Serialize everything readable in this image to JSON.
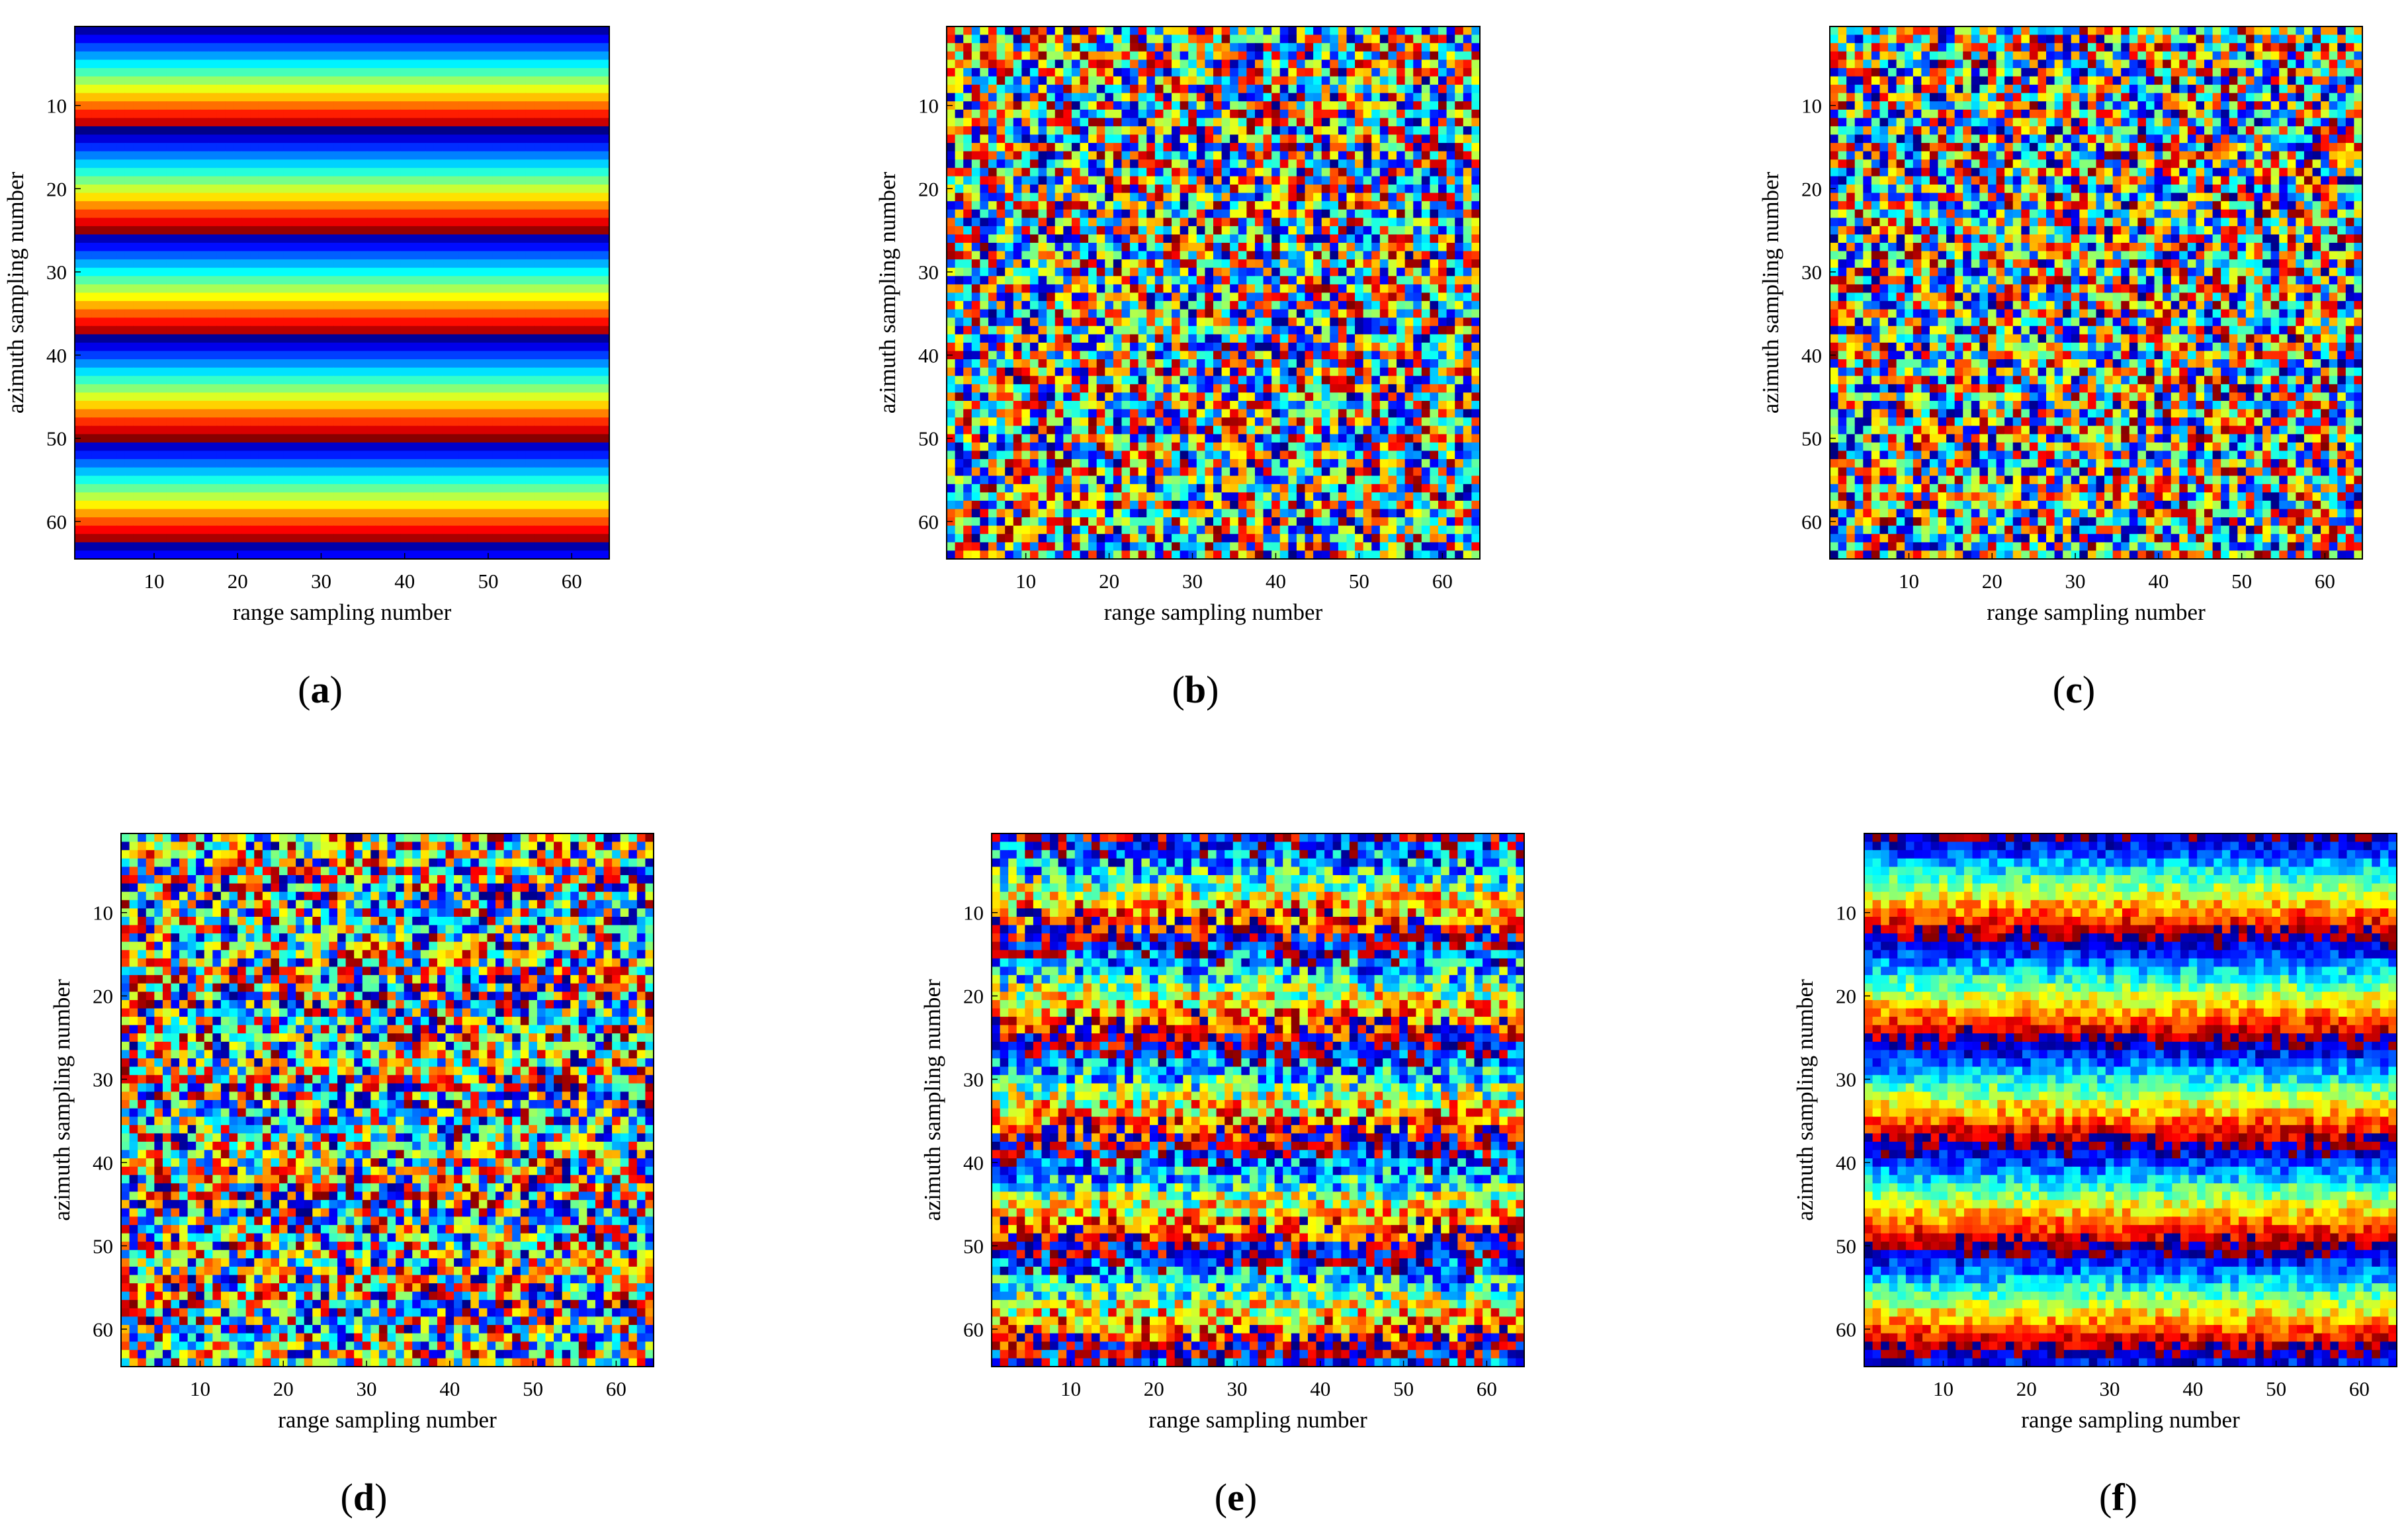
{
  "figure": {
    "panels": [
      {
        "id": "a",
        "caption_open": "(",
        "caption_letter": "a",
        "caption_close": ")"
      },
      {
        "id": "b",
        "caption_open": "(",
        "caption_letter": "b",
        "caption_close": ")"
      },
      {
        "id": "c",
        "caption_open": "(",
        "caption_letter": "c",
        "caption_close": ")"
      },
      {
        "id": "d",
        "caption_open": "(",
        "caption_letter": "d",
        "caption_close": ")"
      },
      {
        "id": "e",
        "caption_open": "(",
        "caption_letter": "e",
        "caption_close": ")"
      },
      {
        "id": "f",
        "caption_open": "(",
        "caption_letter": "f",
        "caption_close": ")"
      }
    ]
  },
  "chart_data": [
    {
      "type": "heatmap",
      "panel": "a",
      "colormap": "jet",
      "xlabel": "range sampling number",
      "ylabel": "azimuth sampling number",
      "xlim": [
        0.5,
        64.5
      ],
      "ylim": [
        64.5,
        0.5
      ],
      "xticks": [
        10,
        20,
        30,
        40,
        50,
        60
      ],
      "yticks": [
        10,
        20,
        30,
        40,
        50,
        60
      ],
      "rows": 64,
      "cols": 64,
      "fringe_period_rows": 12.4,
      "fringe_phase_rows": 0.5,
      "noise_level": 0.0
    },
    {
      "type": "heatmap",
      "panel": "b",
      "colormap": "jet",
      "xlabel": "range sampling number",
      "ylabel": "azimuth sampling number",
      "xlim": [
        0.5,
        64.5
      ],
      "ylim": [
        64.5,
        0.5
      ],
      "xticks": [
        10,
        20,
        30,
        40,
        50,
        60
      ],
      "yticks": [
        10,
        20,
        30,
        40,
        50,
        60
      ],
      "rows": 64,
      "cols": 64,
      "fringe_period_rows": 12.4,
      "fringe_phase_rows": 0.5,
      "noise_level": 1.0
    },
    {
      "type": "heatmap",
      "panel": "c",
      "colormap": "jet",
      "xlabel": "range sampling number",
      "ylabel": "azimuth sampling number",
      "xlim": [
        0.5,
        64.5
      ],
      "ylim": [
        64.5,
        0.5
      ],
      "xticks": [
        10,
        20,
        30,
        40,
        50,
        60
      ],
      "yticks": [
        10,
        20,
        30,
        40,
        50,
        60
      ],
      "rows": 64,
      "cols": 64,
      "fringe_period_rows": 12.4,
      "fringe_phase_rows": 0.5,
      "noise_level": 1.0
    },
    {
      "type": "heatmap",
      "panel": "d",
      "colormap": "jet",
      "xlabel": "range sampling number",
      "ylabel": "azimuth sampling number",
      "xlim": [
        0.5,
        64.5
      ],
      "ylim": [
        64.5,
        0.5
      ],
      "xticks": [
        10,
        20,
        30,
        40,
        50,
        60
      ],
      "yticks": [
        10,
        20,
        30,
        40,
        50,
        60
      ],
      "rows": 64,
      "cols": 64,
      "fringe_period_rows": 12.4,
      "fringe_phase_rows": 0.5,
      "noise_level": 0.6
    },
    {
      "type": "heatmap",
      "panel": "e",
      "colormap": "jet",
      "xlabel": "range sampling number",
      "ylabel": "azimuth sampling number",
      "xlim": [
        0.5,
        64.5
      ],
      "ylim": [
        64.5,
        0.5
      ],
      "xticks": [
        10,
        20,
        30,
        40,
        50,
        60
      ],
      "yticks": [
        10,
        20,
        30,
        40,
        50,
        60
      ],
      "rows": 64,
      "cols": 64,
      "fringe_period_rows": 12.4,
      "fringe_phase_rows": 0.5,
      "noise_level": 0.28
    },
    {
      "type": "heatmap",
      "panel": "f",
      "colormap": "jet",
      "xlabel": "range sampling number",
      "ylabel": "azimuth sampling number",
      "xlim": [
        0.5,
        64.5
      ],
      "ylim": [
        64.5,
        0.5
      ],
      "xticks": [
        10,
        20,
        30,
        40,
        50,
        60
      ],
      "yticks": [
        10,
        20,
        30,
        40,
        50,
        60
      ],
      "rows": 64,
      "cols": 64,
      "fringe_period_rows": 12.4,
      "fringe_phase_rows": 0.5,
      "noise_level": 0.12
    }
  ]
}
